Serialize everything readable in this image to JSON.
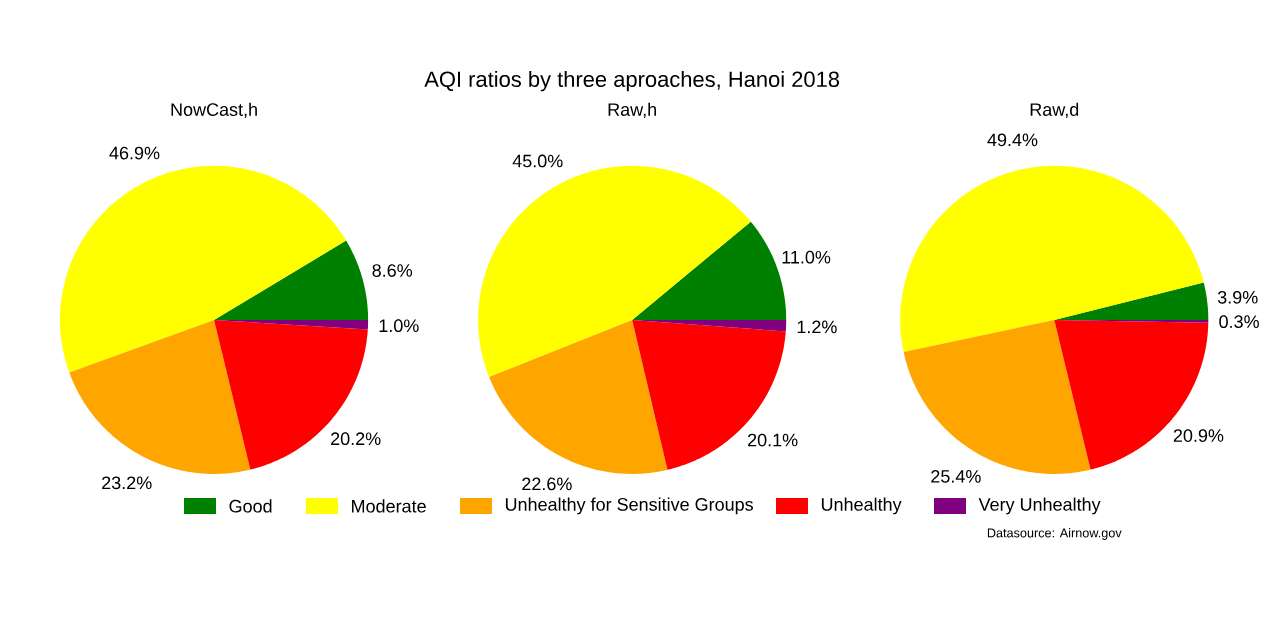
{
  "chart_data": [
    {
      "type": "pie",
      "subtitle": "NowCast,h",
      "legend": "bottom",
      "categories": [
        "Good",
        "Moderate",
        "Unhealthy for Sensitive Groups",
        "Unhealthy",
        "Very Unhealthy"
      ],
      "values": [
        8.6,
        46.9,
        23.2,
        20.2,
        1.0
      ],
      "value_labels": [
        "8.6%",
        "46.9%",
        "23.2%",
        "20.2%",
        "1.0%"
      ],
      "colors": [
        "#008000",
        "#ffff00",
        "#ffa500",
        "#ff0000",
        "#800080"
      ]
    },
    {
      "type": "pie",
      "title": "AQI ratios by three aproaches, Hanoi 2018",
      "subtitle": "Raw,h",
      "values": [
        11.0,
        45.0,
        22.6,
        20.1,
        1.2
      ],
      "value_labels": [
        "11.0%",
        "45.0%",
        "22.6%",
        "20.1%",
        "1.2%"
      ],
      "colors": [
        "#008000",
        "#ffff00",
        "#ffa500",
        "#ff0000",
        "#800080"
      ]
    },
    {
      "type": "pie",
      "subtitle": "Raw,d",
      "annotations": [
        "Datasource: Airnow.gov"
      ],
      "values": [
        3.9,
        49.4,
        25.4,
        20.9,
        0.3
      ],
      "value_labels": [
        "3.9%",
        "49.4%",
        "25.4%",
        "20.9%",
        "0.3%"
      ],
      "colors": [
        "#008000",
        "#ffff00",
        "#ffa500",
        "#ff0000",
        "#800080"
      ]
    }
  ]
}
